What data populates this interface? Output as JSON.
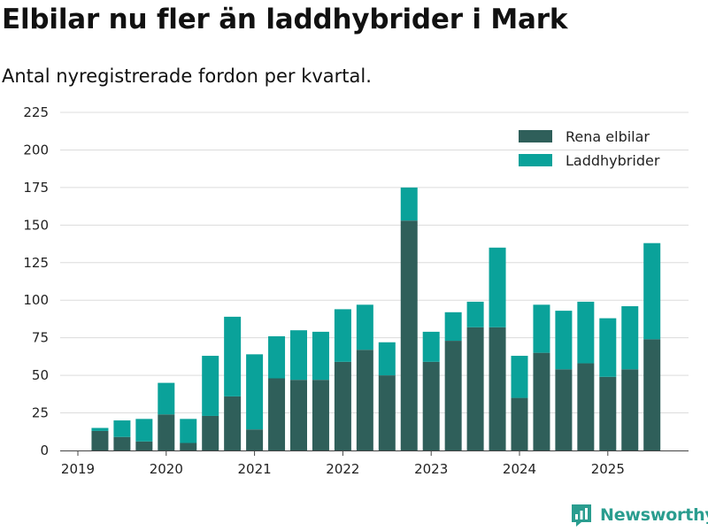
{
  "chart_data": {
    "type": "bar",
    "stacked": true,
    "title": "Elbilar nu fler än laddhybrider i Mark",
    "subtitle": "Antal nyregistrerade fordon per kvartal.",
    "xlabel": "",
    "ylabel": "",
    "ylim": [
      0,
      225
    ],
    "yticks": [
      0,
      25,
      50,
      75,
      100,
      125,
      150,
      175,
      200,
      225
    ],
    "xticks": [
      {
        "label": "2019",
        "pos": 0
      },
      {
        "label": "2020",
        "pos": 4
      },
      {
        "label": "2021",
        "pos": 8
      },
      {
        "label": "2022",
        "pos": 12
      },
      {
        "label": "2023",
        "pos": 16
      },
      {
        "label": "2024",
        "pos": 20
      },
      {
        "label": "2025",
        "pos": 24
      }
    ],
    "categories": [
      "2019 Q2",
      "2019 Q3",
      "2019 Q4",
      "2020 Q1",
      "2020 Q2",
      "2020 Q3",
      "2020 Q4",
      "2021 Q1",
      "2021 Q2",
      "2021 Q3",
      "2021 Q4",
      "2022 Q1",
      "2022 Q2",
      "2022 Q3",
      "2022 Q4",
      "2023 Q1",
      "2023 Q2",
      "2023 Q3",
      "2023 Q4",
      "2024 Q1",
      "2024 Q2",
      "2024 Q3",
      "2024 Q4",
      "2025 Q1",
      "2025 Q2",
      "2025 Q3"
    ],
    "series": [
      {
        "name": "Rena elbilar",
        "color": "#2f5f5a",
        "values": [
          13,
          9,
          6,
          24,
          5,
          23,
          36,
          14,
          48,
          47,
          47,
          59,
          67,
          50,
          153,
          59,
          73,
          82,
          82,
          35,
          65,
          54,
          58,
          49,
          54,
          74
        ]
      },
      {
        "name": "Laddhybrider",
        "color": "#0aa29a",
        "values": [
          2,
          11,
          15,
          21,
          16,
          40,
          53,
          50,
          28,
          33,
          32,
          35,
          30,
          22,
          22,
          20,
          19,
          17,
          53,
          28,
          32,
          39,
          41,
          39,
          42,
          64
        ]
      }
    ],
    "legend_position": "top-right",
    "grid": true
  },
  "brand": {
    "name": "Newsworthy",
    "color": "#2a9d8f"
  }
}
